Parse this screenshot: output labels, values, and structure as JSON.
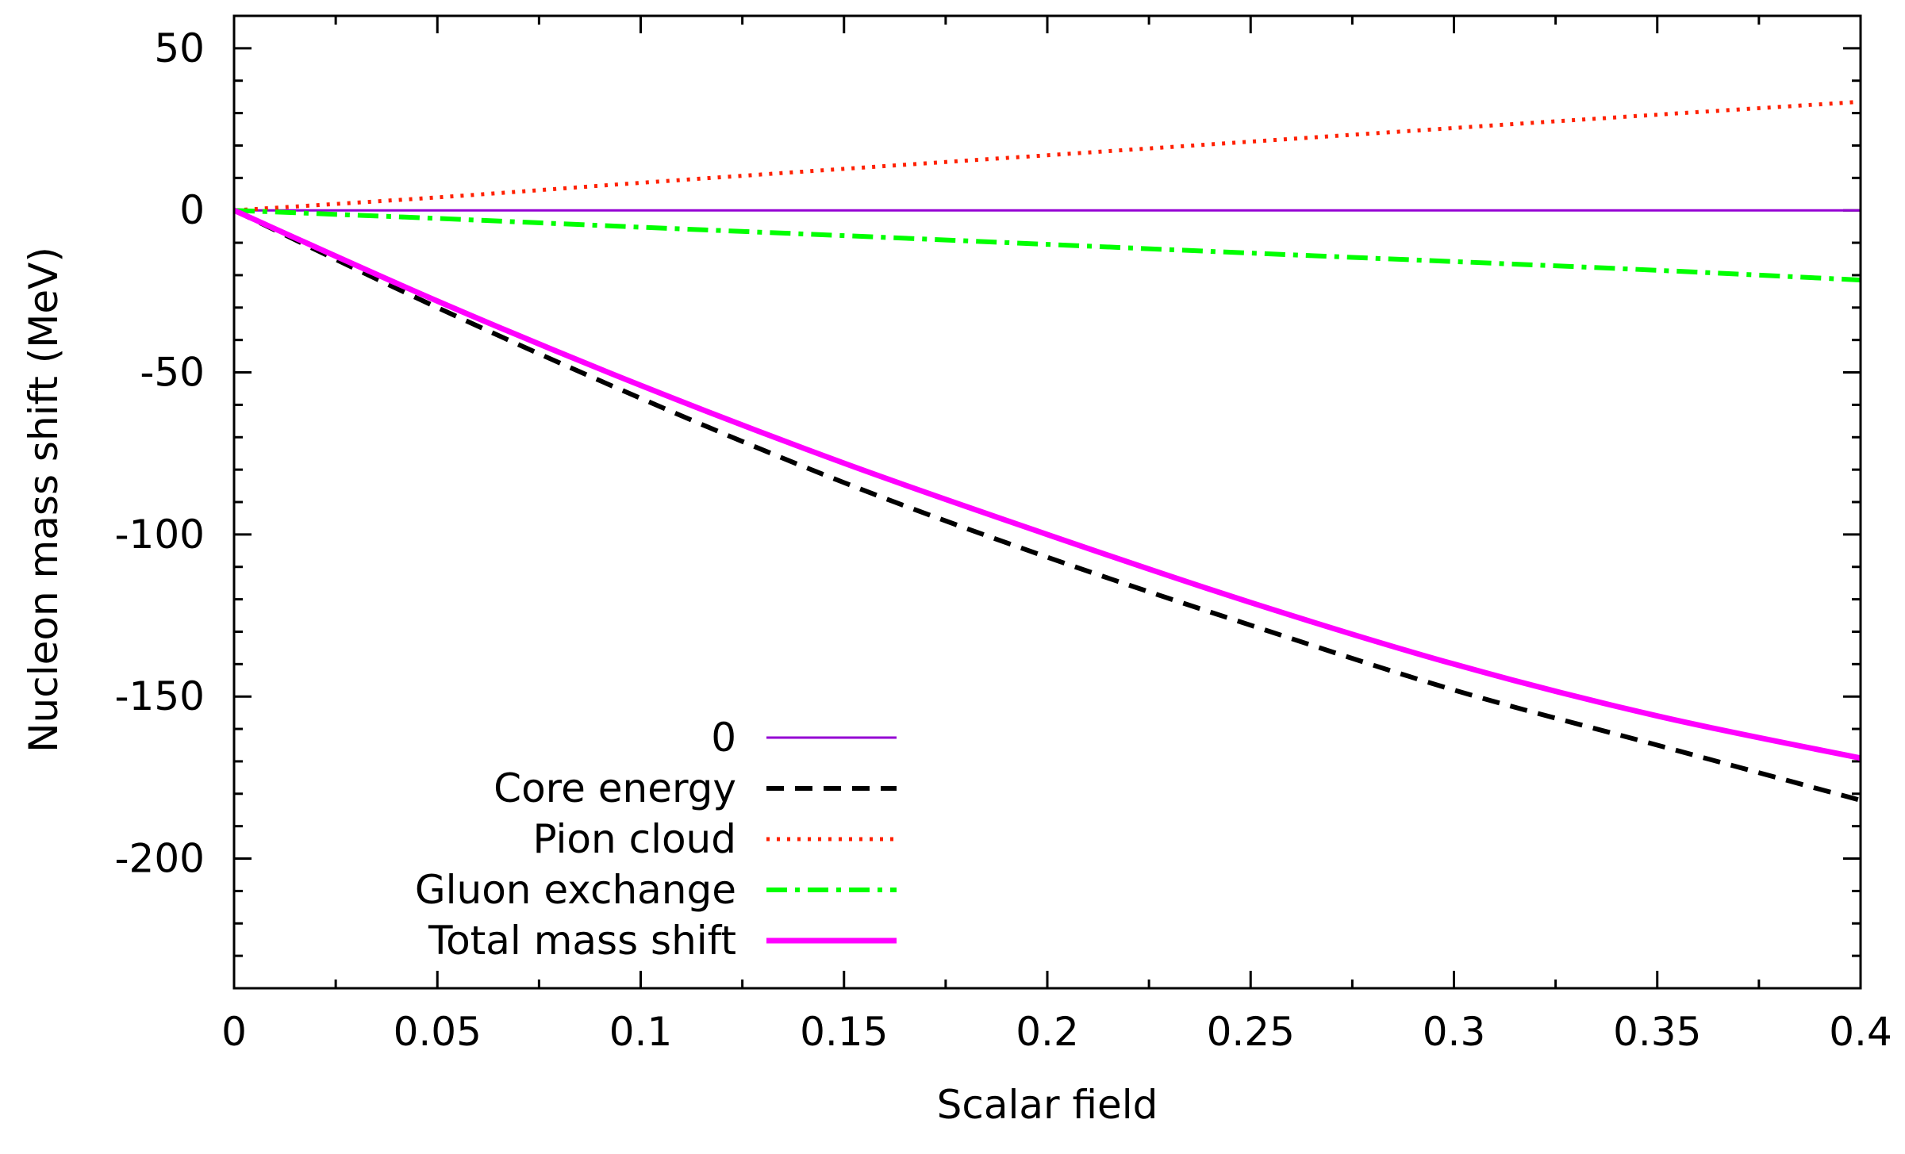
{
  "chart_data": {
    "type": "line",
    "title": "",
    "xlabel": "Scalar field",
    "ylabel": "Nucleon mass shift (MeV)",
    "xlim": [
      0,
      0.4
    ],
    "ylim": [
      -240,
      60
    ],
    "x_ticks": [
      0,
      0.05,
      0.1,
      0.15,
      0.2,
      0.25,
      0.3,
      0.35,
      0.4
    ],
    "x_tick_labels": [
      "0",
      "0.05",
      "0.1",
      "0.15",
      "0.2",
      "0.25",
      "0.3",
      "0.35",
      "0.4"
    ],
    "y_ticks": [
      50,
      0,
      -50,
      -100,
      -150,
      -200
    ],
    "y_tick_labels": [
      "50",
      "0",
      "-50",
      "-100",
      "-150",
      "-200"
    ],
    "grid": false,
    "legend_position": "bottom-left",
    "x": [
      0,
      0.05,
      0.1,
      0.15,
      0.2,
      0.25,
      0.3,
      0.35,
      0.4
    ],
    "series": [
      {
        "name": "0",
        "color": "#9400d3",
        "style": "solid",
        "width": 3,
        "values": [
          0,
          0,
          0,
          0,
          0,
          0,
          0,
          0,
          0
        ]
      },
      {
        "name": "Core energy",
        "color": "#000000",
        "style": "dashed",
        "width": 6,
        "values": [
          0,
          -30,
          -58,
          -84,
          -107,
          -128,
          -148,
          -165,
          -182
        ]
      },
      {
        "name": "Pion cloud",
        "color": "#ff2000",
        "style": "dotted",
        "width": 5,
        "values": [
          0,
          4,
          8.5,
          12.8,
          17,
          21.2,
          25.4,
          29.5,
          33.5
        ]
      },
      {
        "name": "Gluon exchange",
        "color": "#00ff00",
        "style": "dashdot",
        "width": 6,
        "values": [
          0,
          -2.5,
          -5.2,
          -7.8,
          -10.5,
          -13.2,
          -15.8,
          -18.5,
          -21.5
        ]
      },
      {
        "name": "Total mass shift",
        "color": "#ff00ff",
        "style": "solid",
        "width": 7,
        "values": [
          0,
          -28,
          -54,
          -78,
          -100,
          -121,
          -140,
          -156,
          -169
        ]
      }
    ]
  }
}
